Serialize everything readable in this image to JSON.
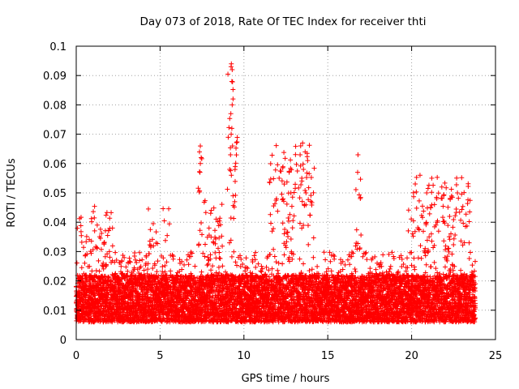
{
  "chart_data": {
    "type": "scatter",
    "title": "Day 073 of 2018, Rate Of TEC Index for receiver thti",
    "xlabel": "GPS time / hours",
    "ylabel": "ROTI / TECUs",
    "xlim": [
      0,
      25
    ],
    "ylim": [
      0,
      0.1
    ],
    "x_ticks": [
      0,
      5,
      10,
      15,
      20,
      25
    ],
    "x_tick_labels": [
      "0",
      "5",
      "10",
      "15",
      "20",
      "25"
    ],
    "y_ticks": [
      0,
      0.01,
      0.02,
      0.03,
      0.04,
      0.05,
      0.06,
      0.07,
      0.08,
      0.09,
      0.1
    ],
    "y_tick_labels": [
      "0",
      "0.01",
      "0.02",
      "0.03",
      "0.04",
      "0.05",
      "0.06",
      "0.07",
      "0.08",
      "0.09",
      "0.1"
    ],
    "grid": true,
    "marker": "+",
    "color": "#ff0000",
    "series": [
      {
        "name": "ROTI",
        "x_range": [
          0,
          23.8
        ],
        "typical_range": [
          0.006,
          0.03
        ],
        "baseline": 0.014,
        "active_periods": [
          {
            "start": 0.0,
            "end": 2.2,
            "max": 0.046
          },
          {
            "start": 4.3,
            "end": 5.6,
            "max": 0.045
          },
          {
            "start": 7.2,
            "end": 7.5,
            "max": 0.066
          },
          {
            "start": 7.6,
            "end": 8.8,
            "max": 0.048
          },
          {
            "start": 9.0,
            "end": 9.6,
            "max": 0.094
          },
          {
            "start": 11.5,
            "end": 14.2,
            "max": 0.067
          },
          {
            "start": 16.6,
            "end": 17.0,
            "max": 0.063
          },
          {
            "start": 19.8,
            "end": 23.5,
            "max": 0.056
          }
        ],
        "peaks": [
          {
            "x": 7.4,
            "y": 0.066
          },
          {
            "x": 7.35,
            "y": 0.064
          },
          {
            "x": 7.45,
            "y": 0.062
          },
          {
            "x": 7.4,
            "y": 0.06
          },
          {
            "x": 7.38,
            "y": 0.057
          },
          {
            "x": 9.25,
            "y": 0.094
          },
          {
            "x": 9.3,
            "y": 0.092
          },
          {
            "x": 9.28,
            "y": 0.088
          },
          {
            "x": 9.35,
            "y": 0.082
          },
          {
            "x": 9.3,
            "y": 0.08
          },
          {
            "x": 9.22,
            "y": 0.077
          },
          {
            "x": 9.28,
            "y": 0.072
          },
          {
            "x": 9.24,
            "y": 0.07
          },
          {
            "x": 9.32,
            "y": 0.066
          },
          {
            "x": 9.2,
            "y": 0.063
          },
          {
            "x": 9.15,
            "y": 0.058
          },
          {
            "x": 9.25,
            "y": 0.056
          },
          {
            "x": 9.35,
            "y": 0.049
          },
          {
            "x": 9.45,
            "y": 0.047
          },
          {
            "x": 13.5,
            "y": 0.067
          },
          {
            "x": 13.65,
            "y": 0.064
          },
          {
            "x": 13.35,
            "y": 0.063
          },
          {
            "x": 13.8,
            "y": 0.061
          },
          {
            "x": 13.55,
            "y": 0.058
          },
          {
            "x": 13.45,
            "y": 0.055
          },
          {
            "x": 13.7,
            "y": 0.05
          },
          {
            "x": 13.6,
            "y": 0.046
          },
          {
            "x": 12.1,
            "y": 0.055
          },
          {
            "x": 12.4,
            "y": 0.053
          },
          {
            "x": 12.8,
            "y": 0.05
          },
          {
            "x": 16.8,
            "y": 0.063
          },
          {
            "x": 16.78,
            "y": 0.057
          },
          {
            "x": 20.5,
            "y": 0.056
          },
          {
            "x": 21.2,
            "y": 0.055
          },
          {
            "x": 21.8,
            "y": 0.052
          },
          {
            "x": 20.9,
            "y": 0.05
          },
          {
            "x": 21.5,
            "y": 0.048
          }
        ]
      }
    ]
  }
}
